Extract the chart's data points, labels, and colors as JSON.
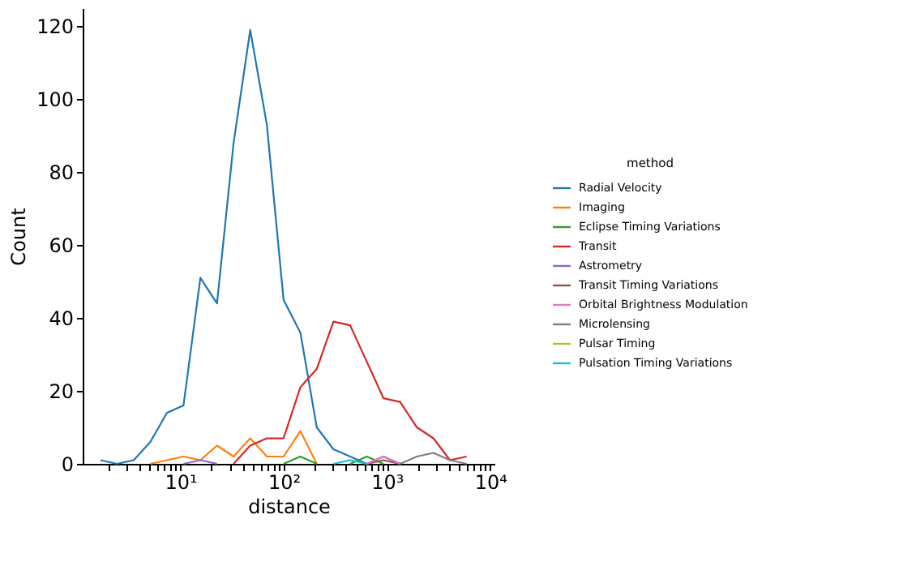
{
  "chart_data": {
    "type": "line",
    "xlabel": "distance",
    "ylabel": "Count",
    "legend_title": "method",
    "legend": "right",
    "grid": false,
    "log": "x",
    "x": [
      1.68,
      2.43,
      3.53,
      5.11,
      7.41,
      10.7,
      15.6,
      22.6,
      32.7,
      47.4,
      68.7,
      99.7,
      145,
      209,
      303,
      440,
      638,
      925,
      1340,
      1950,
      2820,
      4080,
      5920
    ],
    "xlim": [
      1.13,
      11000
    ],
    "ylim": [
      0,
      125
    ],
    "xticks": [
      {
        "value": 2,
        "label": null
      },
      {
        "value": 3,
        "label": null
      },
      {
        "value": 4,
        "label": null
      },
      {
        "value": 5,
        "label": null
      },
      {
        "value": 6,
        "label": null
      },
      {
        "value": 7,
        "label": null
      },
      {
        "value": 8,
        "label": null
      },
      {
        "value": 9,
        "label": null
      },
      {
        "value": 10,
        "label": "10¹"
      },
      {
        "value": 20,
        "label": null
      },
      {
        "value": 30,
        "label": null
      },
      {
        "value": 40,
        "label": null
      },
      {
        "value": 50,
        "label": null
      },
      {
        "value": 60,
        "label": null
      },
      {
        "value": 70,
        "label": null
      },
      {
        "value": 80,
        "label": null
      },
      {
        "value": 90,
        "label": null
      },
      {
        "value": 100,
        "label": "10²"
      },
      {
        "value": 200,
        "label": null
      },
      {
        "value": 300,
        "label": null
      },
      {
        "value": 400,
        "label": null
      },
      {
        "value": 500,
        "label": null
      },
      {
        "value": 600,
        "label": null
      },
      {
        "value": 700,
        "label": null
      },
      {
        "value": 800,
        "label": null
      },
      {
        "value": 900,
        "label": null
      },
      {
        "value": 1000,
        "label": "10³"
      },
      {
        "value": 2000,
        "label": null
      },
      {
        "value": 3000,
        "label": null
      },
      {
        "value": 4000,
        "label": null
      },
      {
        "value": 5000,
        "label": null
      },
      {
        "value": 6000,
        "label": null
      },
      {
        "value": 7000,
        "label": null
      },
      {
        "value": 8000,
        "label": null
      },
      {
        "value": 9000,
        "label": null
      },
      {
        "value": 10000,
        "label": "10⁴"
      }
    ],
    "yticks": [
      0,
      20,
      40,
      60,
      80,
      100,
      120
    ],
    "series": [
      {
        "name": "Radial Velocity",
        "color": "#1f77b4",
        "values": [
          1,
          0,
          1,
          6,
          14,
          16,
          51,
          44,
          88,
          119,
          93,
          45,
          36,
          10,
          4,
          2,
          0,
          2,
          0,
          null,
          null,
          null,
          null
        ]
      },
      {
        "name": "Imaging",
        "color": "#ff7f0e",
        "values": [
          null,
          null,
          null,
          0,
          1,
          2,
          1,
          5,
          2,
          7,
          2,
          2,
          9,
          0,
          null,
          null,
          null,
          null,
          null,
          null,
          null,
          null,
          null
        ]
      },
      {
        "name": "Eclipse Timing Variations",
        "color": "#2ca02c",
        "values": [
          null,
          null,
          null,
          null,
          null,
          null,
          null,
          null,
          null,
          null,
          null,
          0,
          2,
          0,
          null,
          0,
          2,
          0,
          null,
          null,
          null,
          null,
          null
        ]
      },
      {
        "name": "Transit",
        "color": "#d62728",
        "values": [
          null,
          null,
          null,
          null,
          null,
          null,
          null,
          null,
          0,
          5,
          7,
          7,
          21,
          26,
          39,
          38,
          28,
          18,
          17,
          10,
          7,
          1,
          2
        ]
      },
      {
        "name": "Astrometry",
        "color": "#9467bd",
        "values": [
          null,
          null,
          null,
          null,
          null,
          0,
          1,
          0,
          null,
          null,
          null,
          null,
          null,
          null,
          null,
          null,
          null,
          null,
          null,
          null,
          null,
          null,
          null
        ]
      },
      {
        "name": "Transit Timing Variations",
        "color": "#8c564b",
        "values": [
          null,
          null,
          null,
          null,
          null,
          null,
          null,
          null,
          null,
          null,
          null,
          null,
          null,
          null,
          null,
          null,
          0,
          1,
          0,
          null,
          null,
          null,
          null
        ]
      },
      {
        "name": "Orbital Brightness Modulation",
        "color": "#e377c2",
        "values": [
          null,
          null,
          null,
          null,
          null,
          null,
          null,
          null,
          null,
          null,
          null,
          null,
          null,
          null,
          null,
          null,
          0,
          2,
          0,
          null,
          null,
          null,
          null
        ]
      },
      {
        "name": "Microlensing",
        "color": "#7f7f7f",
        "values": [
          null,
          null,
          null,
          null,
          null,
          null,
          null,
          null,
          null,
          null,
          null,
          null,
          null,
          null,
          null,
          null,
          null,
          null,
          0,
          2,
          3,
          1,
          0
        ]
      },
      {
        "name": "Pulsar Timing",
        "color": "#bcbd22",
        "values": [
          null,
          null,
          null,
          null,
          null,
          null,
          null,
          null,
          null,
          null,
          null,
          null,
          null,
          null,
          null,
          null,
          null,
          null,
          null,
          null,
          null,
          null,
          null
        ]
      },
      {
        "name": "Pulsation Timing Variations",
        "color": "#17becf",
        "values": [
          null,
          null,
          null,
          null,
          null,
          null,
          null,
          null,
          null,
          null,
          null,
          null,
          null,
          null,
          0,
          1,
          0,
          null,
          null,
          null,
          null,
          null,
          null
        ]
      }
    ]
  }
}
